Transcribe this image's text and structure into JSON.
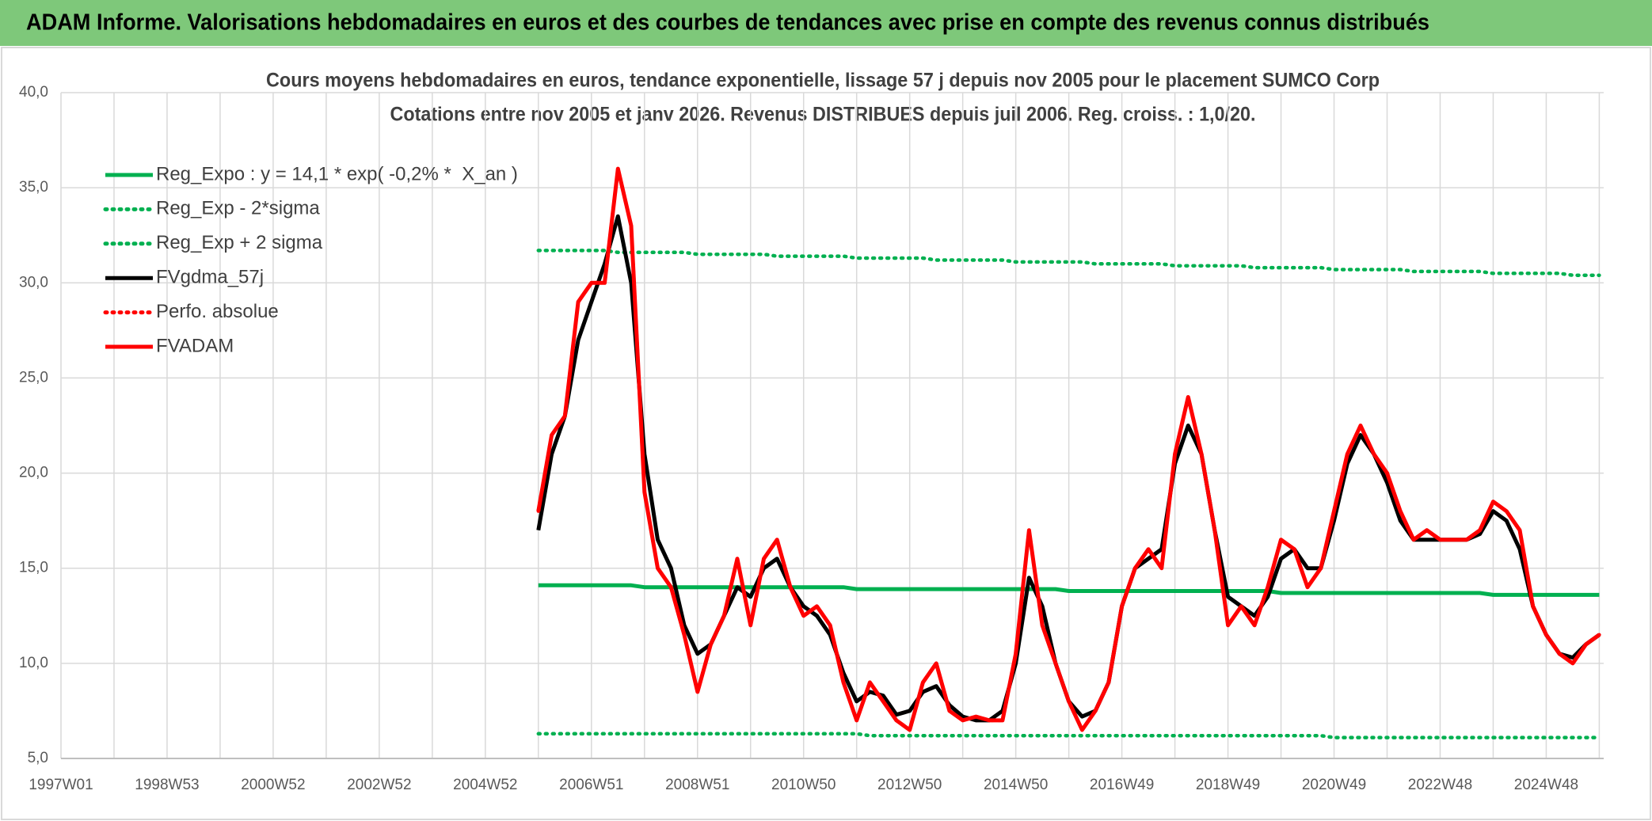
{
  "header": {
    "title": "ADAM Informe. Valorisations hebdomadaires en euros et des courbes de tendances avec prise en compte des revenus connus distribués"
  },
  "chart_data": {
    "type": "line",
    "title": "Cours moyens hebdomadaires en euros, tendance exponentielle, lissage 57 j depuis nov 2005 pour le placement SUMCO Corp",
    "subtitle": "Cotations entre nov 2005 et janv 2026. Revenus DISTRIBUES depuis juil 2006. Reg. croiss. : 1,0/20.",
    "categories": [
      "1997W01",
      null,
      null,
      null,
      null,
      null,
      null,
      null,
      "1998W53",
      null,
      null,
      null,
      null,
      null,
      null,
      null,
      "2000W52",
      null,
      null,
      null,
      null,
      null,
      null,
      null,
      "2002W52",
      null,
      null,
      null,
      null,
      null,
      null,
      null,
      "2004W52",
      null,
      null,
      null,
      null,
      null,
      null,
      null,
      "2006W51",
      null,
      null,
      null,
      null,
      null,
      null,
      null,
      "2008W51",
      null,
      null,
      null,
      null,
      null,
      null,
      null,
      "2010W50",
      null,
      null,
      null,
      null,
      null,
      null,
      null,
      "2012W50",
      null,
      null,
      null,
      null,
      null,
      null,
      null,
      "2014W50",
      null,
      null,
      null,
      null,
      null,
      null,
      null,
      "2016W49",
      null,
      null,
      null,
      null,
      null,
      null,
      null,
      "2018W49",
      null,
      null,
      null,
      null,
      null,
      null,
      null,
      "2020W49",
      null,
      null,
      null,
      null,
      null,
      null,
      null,
      "2022W48",
      null,
      null,
      null,
      null,
      null,
      null,
      null,
      "2024W48",
      null,
      null,
      null,
      null
    ],
    "ylim": [
      5,
      40
    ],
    "yticks": [
      {
        "value": 5,
        "label": "5,0"
      },
      {
        "value": 10,
        "label": "10,0"
      },
      {
        "value": 15,
        "label": "15,0"
      },
      {
        "value": 20,
        "label": "20,0"
      },
      {
        "value": 25,
        "label": "25,0"
      },
      {
        "value": 30,
        "label": "30,0"
      },
      {
        "value": 35,
        "label": "35,0"
      },
      {
        "value": 40,
        "label": "40,0"
      }
    ],
    "grid": true,
    "legend": "upper left",
    "series": [
      {
        "name": "Reg_Expo : y = 14,1 * exp( -0,2% *  X_an )",
        "color": "#00b050",
        "dash": "solid",
        "values": [
          null,
          null,
          null,
          null,
          null,
          null,
          null,
          null,
          null,
          null,
          null,
          null,
          null,
          null,
          null,
          null,
          null,
          null,
          null,
          null,
          null,
          null,
          null,
          null,
          null,
          null,
          null,
          null,
          null,
          null,
          null,
          null,
          null,
          null,
          null,
          null,
          14.1,
          14.1,
          14.1,
          14.1,
          14.1,
          14.1,
          14.1,
          14.1,
          14.0,
          14.0,
          14.0,
          14.0,
          14.0,
          14.0,
          14.0,
          14.0,
          14.0,
          14.0,
          14.0,
          14.0,
          14.0,
          14.0,
          14.0,
          14.0,
          13.9,
          13.9,
          13.9,
          13.9,
          13.9,
          13.9,
          13.9,
          13.9,
          13.9,
          13.9,
          13.9,
          13.9,
          13.9,
          13.9,
          13.9,
          13.9,
          13.8,
          13.8,
          13.8,
          13.8,
          13.8,
          13.8,
          13.8,
          13.8,
          13.8,
          13.8,
          13.8,
          13.8,
          13.8,
          13.8,
          13.8,
          13.8,
          13.7,
          13.7,
          13.7,
          13.7,
          13.7,
          13.7,
          13.7,
          13.7,
          13.7,
          13.7,
          13.7,
          13.7,
          13.7,
          13.7,
          13.7,
          13.7,
          13.6,
          13.6,
          13.6,
          13.6,
          13.6,
          13.6,
          13.6,
          13.6,
          13.6
        ]
      },
      {
        "name": "Reg_Exp - 2*sigma",
        "color": "#00b050",
        "dash": "dotted",
        "values": [
          null,
          null,
          null,
          null,
          null,
          null,
          null,
          null,
          null,
          null,
          null,
          null,
          null,
          null,
          null,
          null,
          null,
          null,
          null,
          null,
          null,
          null,
          null,
          null,
          null,
          null,
          null,
          null,
          null,
          null,
          null,
          null,
          null,
          null,
          null,
          null,
          6.3,
          6.3,
          6.3,
          6.3,
          6.3,
          6.3,
          6.3,
          6.3,
          6.3,
          6.3,
          6.3,
          6.3,
          6.3,
          6.3,
          6.3,
          6.3,
          6.3,
          6.3,
          6.3,
          6.3,
          6.3,
          6.3,
          6.3,
          6.3,
          6.3,
          6.2,
          6.2,
          6.2,
          6.2,
          6.2,
          6.2,
          6.2,
          6.2,
          6.2,
          6.2,
          6.2,
          6.2,
          6.2,
          6.2,
          6.2,
          6.2,
          6.2,
          6.2,
          6.2,
          6.2,
          6.2,
          6.2,
          6.2,
          6.2,
          6.2,
          6.2,
          6.2,
          6.2,
          6.2,
          6.2,
          6.2,
          6.2,
          6.2,
          6.2,
          6.2,
          6.1,
          6.1,
          6.1,
          6.1,
          6.1,
          6.1,
          6.1,
          6.1,
          6.1,
          6.1,
          6.1,
          6.1,
          6.1,
          6.1,
          6.1,
          6.1,
          6.1,
          6.1,
          6.1,
          6.1,
          6.1
        ]
      },
      {
        "name": "Reg_Exp + 2 sigma",
        "color": "#00b050",
        "dash": "dotted",
        "values": [
          null,
          null,
          null,
          null,
          null,
          null,
          null,
          null,
          null,
          null,
          null,
          null,
          null,
          null,
          null,
          null,
          null,
          null,
          null,
          null,
          null,
          null,
          null,
          null,
          null,
          null,
          null,
          null,
          null,
          null,
          null,
          null,
          null,
          null,
          null,
          null,
          31.7,
          31.7,
          31.7,
          31.7,
          31.7,
          31.7,
          31.6,
          31.6,
          31.6,
          31.6,
          31.6,
          31.6,
          31.5,
          31.5,
          31.5,
          31.5,
          31.5,
          31.5,
          31.4,
          31.4,
          31.4,
          31.4,
          31.4,
          31.4,
          31.3,
          31.3,
          31.3,
          31.3,
          31.3,
          31.3,
          31.2,
          31.2,
          31.2,
          31.2,
          31.2,
          31.2,
          31.1,
          31.1,
          31.1,
          31.1,
          31.1,
          31.1,
          31.0,
          31.0,
          31.0,
          31.0,
          31.0,
          31.0,
          30.9,
          30.9,
          30.9,
          30.9,
          30.9,
          30.9,
          30.8,
          30.8,
          30.8,
          30.8,
          30.8,
          30.8,
          30.7,
          30.7,
          30.7,
          30.7,
          30.7,
          30.7,
          30.6,
          30.6,
          30.6,
          30.6,
          30.6,
          30.6,
          30.5,
          30.5,
          30.5,
          30.5,
          30.5,
          30.5,
          30.4,
          30.4,
          30.4
        ]
      },
      {
        "name": "FVgdma_57j",
        "color": "#000000",
        "dash": "solid",
        "values": [
          null,
          null,
          null,
          null,
          null,
          null,
          null,
          null,
          null,
          null,
          null,
          null,
          null,
          null,
          null,
          null,
          null,
          null,
          null,
          null,
          null,
          null,
          null,
          null,
          null,
          null,
          null,
          null,
          null,
          null,
          null,
          null,
          null,
          null,
          null,
          null,
          17,
          21,
          23,
          27,
          29,
          31,
          33.5,
          30,
          21,
          16.5,
          15,
          12,
          10.5,
          11,
          12.5,
          14,
          13.5,
          15,
          15.5,
          14,
          13,
          12.5,
          11.5,
          9.5,
          8,
          8.5,
          8.3,
          7.3,
          7.5,
          8.5,
          8.8,
          7.8,
          7.2,
          7,
          7,
          7.5,
          10,
          14.5,
          13,
          10,
          8,
          7.2,
          7.5,
          9,
          13,
          15,
          15.5,
          16,
          20.5,
          22.5,
          21,
          17,
          13.5,
          13,
          12.5,
          13.5,
          15.5,
          16,
          15,
          15,
          17.5,
          20.5,
          22,
          21,
          19.5,
          17.5,
          16.5,
          16.5,
          16.5,
          16.5,
          16.5,
          16.8,
          18,
          17.5,
          16,
          13,
          11.5,
          10.5,
          10.3,
          11,
          11.5
        ]
      },
      {
        "name": "Perfo. absolue",
        "color": "#ff0000",
        "dash": "dotted",
        "values": [
          null,
          null,
          null,
          null,
          null,
          null,
          null,
          null,
          null,
          null,
          null,
          null,
          null,
          null,
          null,
          null,
          null,
          null,
          null,
          null,
          null,
          null,
          null,
          null,
          null,
          null,
          null,
          null,
          null,
          null,
          null,
          null,
          null,
          null,
          null,
          null,
          18,
          22,
          23,
          29,
          30,
          30,
          36,
          33,
          19,
          15,
          14,
          11.5,
          8.5,
          11,
          12.5,
          15.5,
          12,
          15.5,
          16.5,
          14,
          12.5,
          13,
          12,
          9,
          7,
          9,
          8,
          7,
          6.5,
          9,
          10,
          7.5,
          7,
          7.2,
          7,
          7,
          10.5,
          17,
          12,
          10,
          8,
          6.5,
          7.5,
          9,
          13,
          15,
          16,
          15,
          21,
          24,
          21,
          17,
          12,
          13,
          12,
          14,
          16.5,
          16,
          14,
          15,
          18,
          21,
          22.5,
          21,
          20,
          18,
          16.5,
          17,
          16.5,
          16.5,
          16.5,
          17,
          18.5,
          18,
          17,
          13,
          11.5,
          10.5,
          10,
          11,
          11.5
        ]
      },
      {
        "name": "FVADAM",
        "color": "#ff0000",
        "dash": "solid",
        "values": [
          null,
          null,
          null,
          null,
          null,
          null,
          null,
          null,
          null,
          null,
          null,
          null,
          null,
          null,
          null,
          null,
          null,
          null,
          null,
          null,
          null,
          null,
          null,
          null,
          null,
          null,
          null,
          null,
          null,
          null,
          null,
          null,
          null,
          null,
          null,
          null,
          18,
          22,
          23,
          29,
          30,
          30,
          36,
          33,
          19,
          15,
          14,
          11.5,
          8.5,
          11,
          12.5,
          15.5,
          12,
          15.5,
          16.5,
          14,
          12.5,
          13,
          12,
          9,
          7,
          9,
          8,
          7,
          6.5,
          9,
          10,
          7.5,
          7,
          7.2,
          7,
          7,
          10.5,
          17,
          12,
          10,
          8,
          6.5,
          7.5,
          9,
          13,
          15,
          16,
          15,
          21,
          24,
          21,
          17,
          12,
          13,
          12,
          14,
          16.5,
          16,
          14,
          15,
          18,
          21,
          22.5,
          21,
          20,
          18,
          16.5,
          17,
          16.5,
          16.5,
          16.5,
          17,
          18.5,
          18,
          17,
          13,
          11.5,
          10.5,
          10,
          11,
          11.5
        ]
      }
    ]
  }
}
